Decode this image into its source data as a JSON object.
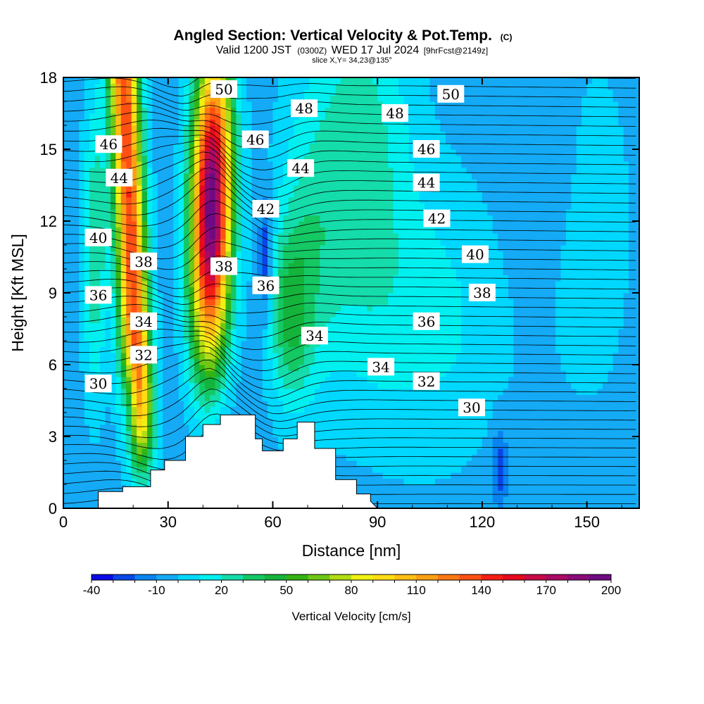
{
  "header": {
    "title": "Angled Section: Vertical Velocity & Pot.Temp.",
    "title_mark": "(C)",
    "subtitle_a": "Valid 1200 JST",
    "subtitle_b": "(0300Z)",
    "subtitle_c": "WED 17 Jul 2024",
    "subtitle_d": "[9hrFcst@2149z]",
    "slice": "slice X,Y= 34,23@135°"
  },
  "chart_data": {
    "type": "heatmap",
    "title": "Angled Section: Vertical Velocity & Pot.Temp.",
    "xlabel": "Distance [nm]",
    "ylabel": "Height [Kft MSL]",
    "xlim": [
      0,
      165
    ],
    "ylim": [
      0,
      18
    ],
    "x_ticks": [
      "0",
      "30",
      "60",
      "90",
      "120",
      "150"
    ],
    "x_tick_values": [
      0,
      30,
      60,
      90,
      120,
      150
    ],
    "y_ticks": [
      "0",
      "3",
      "6",
      "9",
      "12",
      "15",
      "18"
    ],
    "y_tick_values": [
      0,
      3,
      6,
      9,
      12,
      15,
      18
    ],
    "colorbar": {
      "label": "Vertical Velocity [cm/s]",
      "tick_labels": [
        "-40",
        "-10",
        "20",
        "50",
        "80",
        "110",
        "140",
        "170",
        "200"
      ],
      "tick_values": [
        -40,
        -10,
        20,
        50,
        80,
        110,
        140,
        170,
        200
      ],
      "levels": [
        -40,
        -30,
        -20,
        -10,
        0,
        10,
        20,
        30,
        40,
        50,
        60,
        70,
        80,
        90,
        100,
        110,
        120,
        130,
        140,
        150,
        160,
        170,
        180,
        190,
        200
      ],
      "colors": [
        "#0a0ae6",
        "#0a46e6",
        "#0a82f0",
        "#14aaf5",
        "#00d8ff",
        "#00f0f0",
        "#14dcaa",
        "#14c864",
        "#14b43c",
        "#32b414",
        "#6ec814",
        "#b4dc14",
        "#f0f014",
        "#ffdc14",
        "#ffbe14",
        "#ffa014",
        "#ff7814",
        "#ff5014",
        "#f51e14",
        "#e60a1e",
        "#c80a46",
        "#aa0a64",
        "#8c0a78",
        "#6e0a82"
      ]
    },
    "velocity_features": [
      {
        "kind": "updraft",
        "x": 15,
        "y_range": [
          2,
          18
        ],
        "peak_cm_s": 140
      },
      {
        "kind": "updraft",
        "x": 42,
        "y_range": [
          3,
          18
        ],
        "peak_cm_s": 200
      },
      {
        "kind": "downdraft",
        "x": 19,
        "y": 4.5,
        "min_cm_s": -35
      },
      {
        "kind": "downdraft",
        "x": 58,
        "y": 10,
        "min_cm_s": -25
      },
      {
        "kind": "downdraft",
        "x": 125,
        "y": 2,
        "min_cm_s": -25
      }
    ],
    "terrain_profile_nm_kft": [
      [
        10,
        0.7
      ],
      [
        17,
        0.9
      ],
      [
        25,
        1.6
      ],
      [
        29,
        2.0
      ],
      [
        35,
        3.0
      ],
      [
        40,
        3.5
      ],
      [
        45,
        3.9
      ],
      [
        52,
        3.9
      ],
      [
        55,
        2.9
      ],
      [
        57,
        2.4
      ],
      [
        63,
        2.9
      ],
      [
        67,
        3.6
      ],
      [
        72,
        2.5
      ],
      [
        78,
        1.2
      ],
      [
        84,
        0.6
      ],
      [
        88,
        0.3
      ]
    ],
    "contour_labels": [
      {
        "text": "50",
        "x": 46,
        "y": 17.5
      },
      {
        "text": "48",
        "x": 69,
        "y": 16.7
      },
      {
        "text": "50",
        "x": 111,
        "y": 17.3
      },
      {
        "text": "48",
        "x": 95,
        "y": 16.5
      },
      {
        "text": "46",
        "x": 13,
        "y": 15.2
      },
      {
        "text": "46",
        "x": 55,
        "y": 15.4
      },
      {
        "text": "46",
        "x": 104,
        "y": 15.0
      },
      {
        "text": "44",
        "x": 16,
        "y": 13.8
      },
      {
        "text": "44",
        "x": 68,
        "y": 14.2
      },
      {
        "text": "44",
        "x": 104,
        "y": 13.6
      },
      {
        "text": "42",
        "x": 58,
        "y": 12.5
      },
      {
        "text": "42",
        "x": 107,
        "y": 12.1
      },
      {
        "text": "40",
        "x": 10,
        "y": 11.3
      },
      {
        "text": "40",
        "x": 118,
        "y": 10.6
      },
      {
        "text": "38",
        "x": 23,
        "y": 10.3
      },
      {
        "text": "38",
        "x": 46,
        "y": 10.1
      },
      {
        "text": "38",
        "x": 120,
        "y": 9.0
      },
      {
        "text": "36",
        "x": 10,
        "y": 8.9
      },
      {
        "text": "36",
        "x": 58,
        "y": 9.3
      },
      {
        "text": "36",
        "x": 104,
        "y": 7.8
      },
      {
        "text": "34",
        "x": 23,
        "y": 7.8
      },
      {
        "text": "34",
        "x": 72,
        "y": 7.2
      },
      {
        "text": "34",
        "x": 91,
        "y": 5.9
      },
      {
        "text": "32",
        "x": 23,
        "y": 6.4
      },
      {
        "text": "32",
        "x": 104,
        "y": 5.3
      },
      {
        "text": "30",
        "x": 10,
        "y": 5.2
      },
      {
        "text": "30",
        "x": 117,
        "y": 4.2
      }
    ]
  }
}
